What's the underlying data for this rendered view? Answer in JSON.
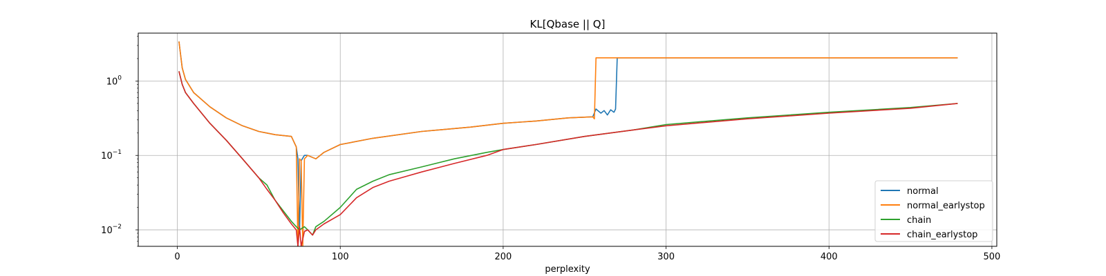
{
  "chart_data": {
    "type": "line",
    "title": "KL[Qbase || Q]",
    "xlabel": "perplexity",
    "ylabel": "",
    "xlim": [
      -24,
      503
    ],
    "ylim": [
      0.006,
      4.4
    ],
    "yscale": "log",
    "grid": true,
    "legend_position": "lower right",
    "x_ticks": [
      0,
      100,
      200,
      300,
      400,
      500
    ],
    "y_ticks": [
      {
        "value": 0.01,
        "base": "10",
        "exp": "−2"
      },
      {
        "value": 0.1,
        "base": "10",
        "exp": "−1"
      },
      {
        "value": 1,
        "base": "10",
        "exp": "0"
      }
    ],
    "series": [
      {
        "name": "normal",
        "color": "#1f77b4",
        "x": [
          1,
          3,
          5,
          10,
          20,
          30,
          40,
          50,
          60,
          70,
          73,
          74,
          75,
          76,
          78,
          80,
          85,
          90,
          100,
          120,
          150,
          180,
          200,
          220,
          240,
          255,
          257,
          260,
          262,
          264,
          266,
          268,
          269,
          270,
          300,
          350,
          400,
          450,
          479
        ],
        "y": [
          3.4,
          1.5,
          1.05,
          0.7,
          0.45,
          0.32,
          0.25,
          0.21,
          0.19,
          0.18,
          0.13,
          0.09,
          0.009,
          0.085,
          0.1,
          0.1,
          0.09,
          0.11,
          0.14,
          0.17,
          0.21,
          0.24,
          0.27,
          0.29,
          0.32,
          0.33,
          0.42,
          0.37,
          0.4,
          0.35,
          0.41,
          0.38,
          0.42,
          2.05,
          2.05,
          2.05,
          2.05,
          2.05,
          2.05
        ]
      },
      {
        "name": "normal_earlystop",
        "color": "#ff7f0e",
        "x": [
          1,
          3,
          5,
          10,
          20,
          30,
          40,
          50,
          60,
          70,
          73,
          74,
          75,
          76,
          77,
          78,
          80,
          85,
          90,
          100,
          120,
          150,
          180,
          200,
          220,
          240,
          255,
          256,
          257,
          258,
          300,
          350,
          400,
          450,
          479
        ],
        "y": [
          3.4,
          1.5,
          1.05,
          0.7,
          0.45,
          0.32,
          0.25,
          0.21,
          0.19,
          0.18,
          0.13,
          0.006,
          0.09,
          0.085,
          0.006,
          0.09,
          0.1,
          0.09,
          0.11,
          0.14,
          0.17,
          0.21,
          0.24,
          0.27,
          0.29,
          0.32,
          0.33,
          0.31,
          2.05,
          2.05,
          2.05,
          2.05,
          2.05,
          2.05,
          2.05
        ]
      },
      {
        "name": "chain",
        "color": "#2ca02c",
        "x": [
          1,
          3,
          5,
          10,
          20,
          30,
          40,
          50,
          55,
          60,
          65,
          70,
          73,
          75,
          78,
          80,
          83,
          85,
          90,
          100,
          110,
          120,
          130,
          150,
          170,
          190,
          200,
          220,
          250,
          280,
          300,
          350,
          400,
          450,
          479
        ],
        "y": [
          1.35,
          0.9,
          0.7,
          0.5,
          0.27,
          0.16,
          0.09,
          0.05,
          0.04,
          0.025,
          0.018,
          0.013,
          0.011,
          0.01,
          0.011,
          0.01,
          0.0085,
          0.011,
          0.013,
          0.02,
          0.035,
          0.045,
          0.055,
          0.07,
          0.09,
          0.11,
          0.12,
          0.14,
          0.18,
          0.22,
          0.26,
          0.32,
          0.38,
          0.44,
          0.5
        ]
      },
      {
        "name": "chain_earlystop",
        "color": "#d62728",
        "x": [
          1,
          3,
          5,
          10,
          20,
          30,
          40,
          50,
          55,
          60,
          65,
          70,
          73,
          74,
          75,
          76,
          78,
          80,
          83,
          85,
          90,
          100,
          110,
          120,
          130,
          150,
          170,
          190,
          200,
          220,
          250,
          280,
          300,
          350,
          400,
          450,
          479
        ],
        "y": [
          1.35,
          0.9,
          0.7,
          0.5,
          0.27,
          0.16,
          0.09,
          0.05,
          0.035,
          0.025,
          0.017,
          0.012,
          0.01,
          0.006,
          0.011,
          0.006,
          0.0095,
          0.01,
          0.0085,
          0.01,
          0.012,
          0.016,
          0.027,
          0.037,
          0.045,
          0.06,
          0.078,
          0.1,
          0.12,
          0.14,
          0.18,
          0.22,
          0.25,
          0.31,
          0.37,
          0.43,
          0.5
        ]
      }
    ]
  }
}
